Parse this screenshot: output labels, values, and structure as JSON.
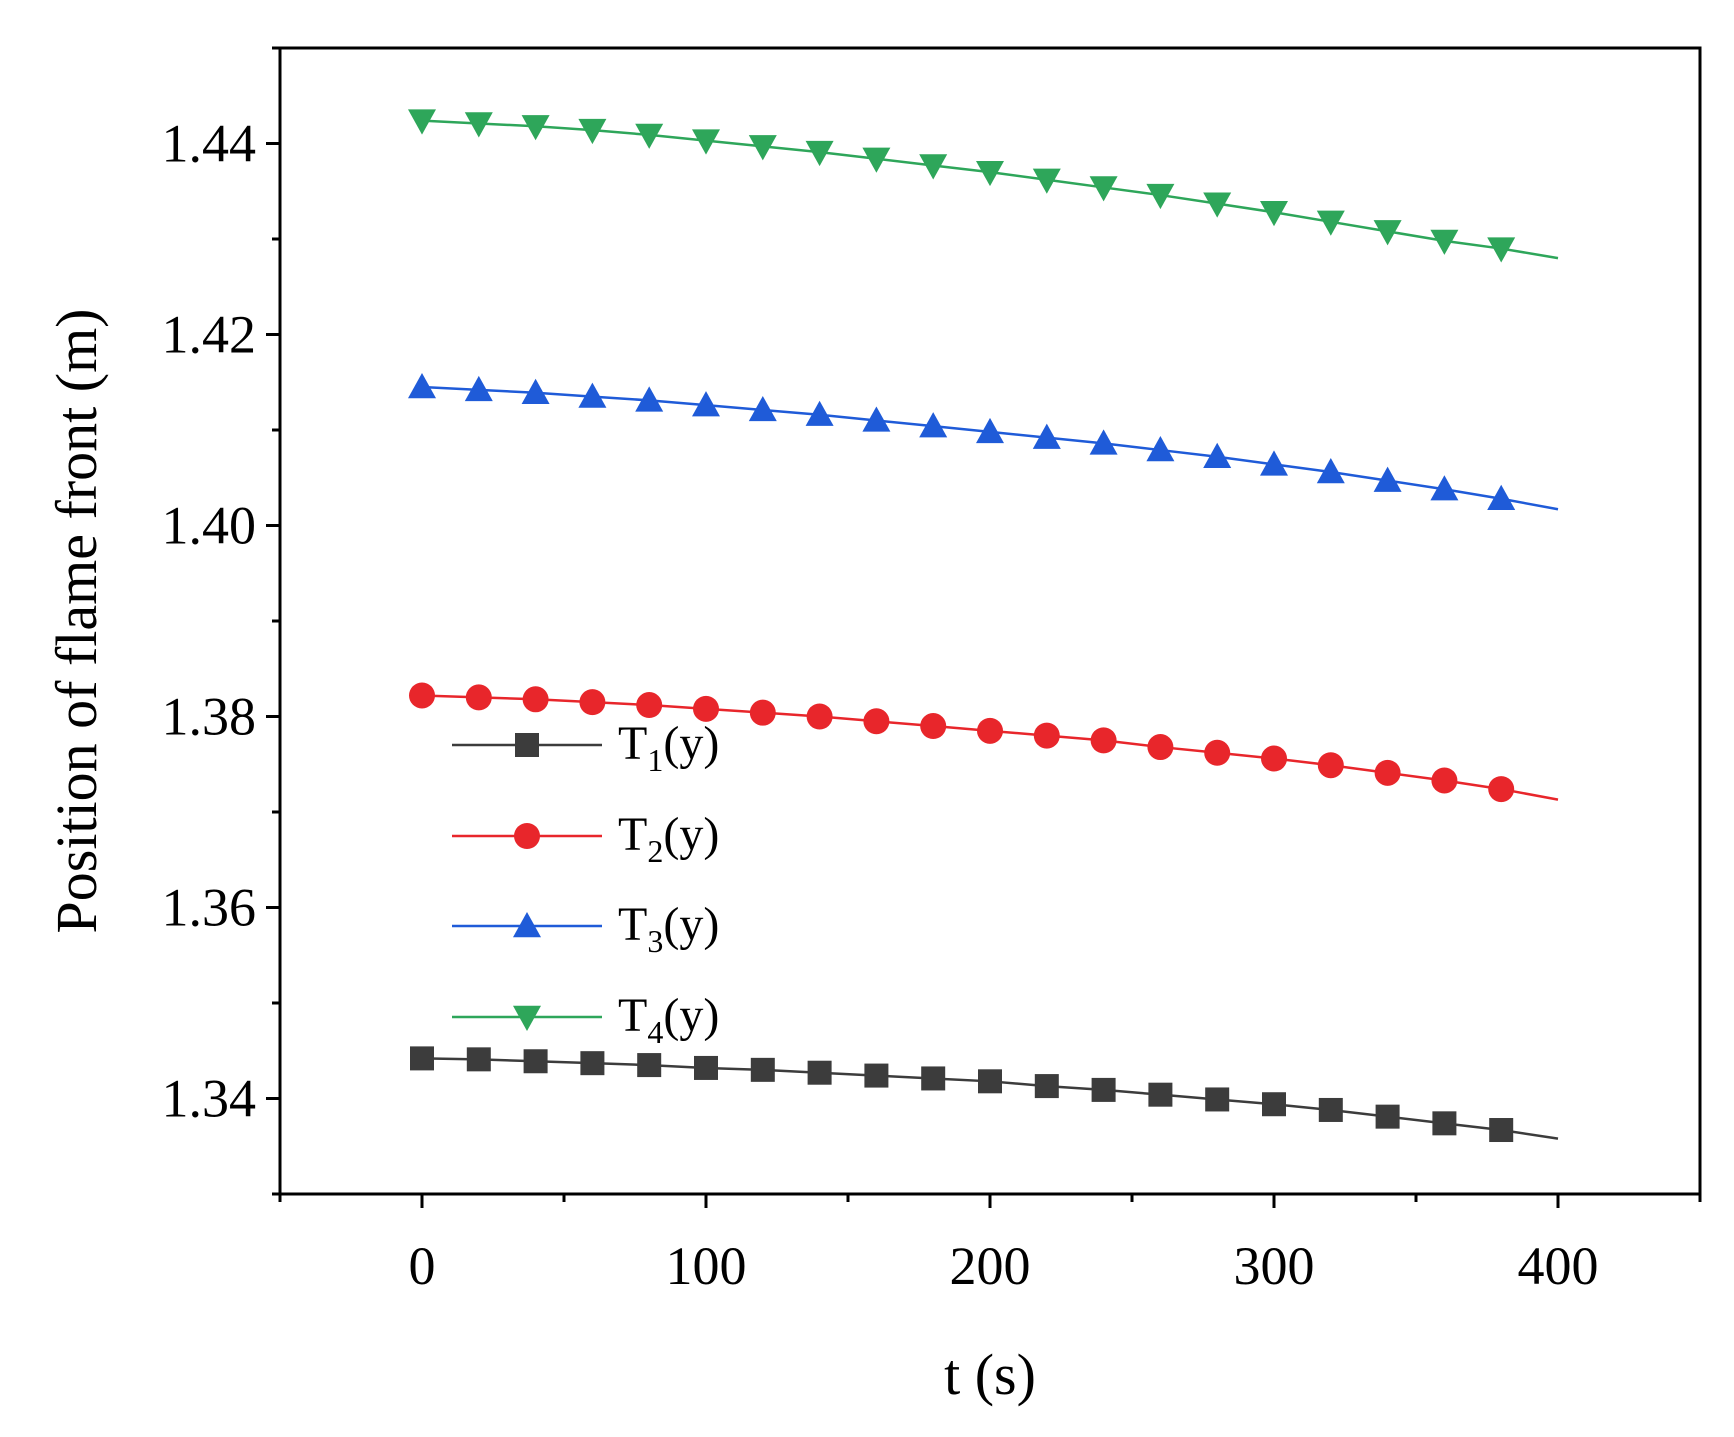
{
  "chart_data": {
    "type": "line",
    "title": "",
    "xlabel": "t (s)",
    "ylabel": "Position of flame front (m)",
    "xlim": [
      -50,
      450
    ],
    "ylim": [
      1.33,
      1.45
    ],
    "xticks": [
      0,
      100,
      200,
      300,
      400
    ],
    "xtick_labels": [
      "0",
      "100",
      "200",
      "300",
      "400"
    ],
    "yticks": [
      1.34,
      1.36,
      1.38,
      1.4,
      1.42,
      1.44
    ],
    "ytick_labels": [
      "1.34",
      "1.36",
      "1.38",
      "1.40",
      "1.42",
      "1.44"
    ],
    "grid": false,
    "legend_position": "lower-left",
    "marker_x": [
      0,
      20,
      40,
      60,
      80,
      100,
      120,
      140,
      160,
      180,
      200,
      220,
      240,
      260,
      280,
      300,
      320,
      340,
      360,
      380
    ],
    "series": [
      {
        "name": "T1(y)",
        "label_main": "T",
        "label_sub": "1",
        "label_tail": "(y)",
        "color": "#3c3c3c",
        "marker": "square",
        "line_end": 1.3358,
        "values": [
          1.3442,
          1.3441,
          1.3439,
          1.3437,
          1.3435,
          1.3432,
          1.343,
          1.3427,
          1.3424,
          1.3421,
          1.3418,
          1.3413,
          1.3409,
          1.3404,
          1.3399,
          1.3394,
          1.3388,
          1.3381,
          1.3374,
          1.3367
        ]
      },
      {
        "name": "T2(y)",
        "label_main": "T",
        "label_sub": "2",
        "label_tail": "(y)",
        "color": "#e8262b",
        "marker": "circle",
        "line_end": 1.3713,
        "values": [
          1.3822,
          1.382,
          1.3818,
          1.3815,
          1.3812,
          1.3808,
          1.3804,
          1.38,
          1.3795,
          1.379,
          1.3785,
          1.378,
          1.3775,
          1.3768,
          1.3762,
          1.3756,
          1.3749,
          1.3741,
          1.3733,
          1.3724
        ]
      },
      {
        "name": "T3(y)",
        "label_main": "T",
        "label_sub": "3",
        "label_tail": "(y)",
        "color": "#1f5bd8",
        "marker": "triangle-up",
        "line_end": 1.4017,
        "values": [
          1.4145,
          1.4142,
          1.4139,
          1.4135,
          1.4131,
          1.4126,
          1.4121,
          1.4116,
          1.411,
          1.4104,
          1.4098,
          1.4092,
          1.4086,
          1.4079,
          1.4072,
          1.4064,
          1.4056,
          1.4047,
          1.4038,
          1.4028
        ]
      },
      {
        "name": "T4(y)",
        "label_main": "T",
        "label_sub": "4",
        "label_tail": "(y)",
        "color": "#2ea65a",
        "marker": "triangle-down",
        "line_end": 1.428,
        "values": [
          1.4424,
          1.4421,
          1.4418,
          1.4414,
          1.4409,
          1.4403,
          1.4397,
          1.4391,
          1.4384,
          1.4377,
          1.437,
          1.4362,
          1.4354,
          1.4346,
          1.4337,
          1.4328,
          1.4318,
          1.4308,
          1.4298,
          1.429
        ]
      }
    ]
  }
}
